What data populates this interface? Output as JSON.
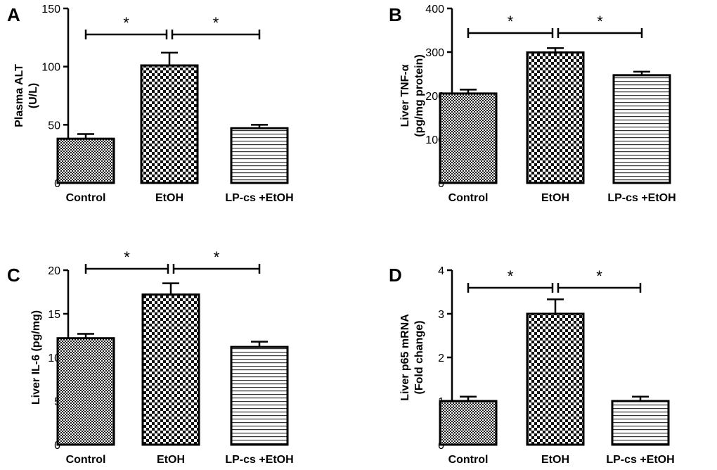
{
  "chart_data": [
    {
      "panel_label": "A",
      "type": "bar",
      "categories": [
        "Control",
        "EtOH",
        "LP-cs +EtOH"
      ],
      "values": [
        38,
        101,
        47
      ],
      "errors": [
        4,
        11,
        3
      ],
      "ylabel_lines": [
        "Plasma ALT",
        "(U/L)"
      ],
      "ylim": [
        0,
        150
      ],
      "yticks": [
        0,
        50,
        100,
        150
      ],
      "significance": [
        "*",
        "*"
      ],
      "patterns": [
        "checker_small",
        "checker_large",
        "stripes"
      ]
    },
    {
      "panel_label": "B",
      "type": "bar",
      "categories": [
        "Control",
        "EtOH",
        "LP-cs +EtOH"
      ],
      "values": [
        205,
        299,
        247
      ],
      "errors": [
        9,
        10,
        8
      ],
      "ylabel_lines": [
        "Liver TNF-α",
        "(pg/mg protein)"
      ],
      "ylim": [
        0,
        400
      ],
      "yticks": [
        0,
        100,
        200,
        300,
        400
      ],
      "significance": [
        "*",
        "*"
      ],
      "patterns": [
        "checker_small",
        "checker_large",
        "stripes"
      ]
    },
    {
      "panel_label": "C",
      "type": "bar",
      "categories": [
        "Control",
        "EtOH",
        "LP-cs +EtOH"
      ],
      "values": [
        12.2,
        17.2,
        11.2
      ],
      "errors": [
        0.5,
        1.3,
        0.6
      ],
      "ylabel_lines": [
        "Liver IL-6 (pg/mg)"
      ],
      "ylim": [
        0,
        20
      ],
      "yticks": [
        0,
        5,
        10,
        15,
        20
      ],
      "significance": [
        "*",
        "*"
      ],
      "patterns": [
        "checker_small",
        "checker_large",
        "stripes"
      ]
    },
    {
      "panel_label": "D",
      "type": "bar",
      "categories": [
        "Control",
        "EtOH",
        "LP-cs +EtOH"
      ],
      "values": [
        1.0,
        3.0,
        1.0
      ],
      "errors": [
        0.1,
        0.33,
        0.1
      ],
      "ylabel_lines": [
        "Liver p65  mRNA",
        "(Fold change)"
      ],
      "ylim": [
        0,
        4
      ],
      "yticks": [
        0,
        1,
        2,
        3,
        4
      ],
      "significance": [
        "*",
        "*"
      ],
      "patterns": [
        "checker_small",
        "checker_large",
        "stripes"
      ]
    }
  ]
}
